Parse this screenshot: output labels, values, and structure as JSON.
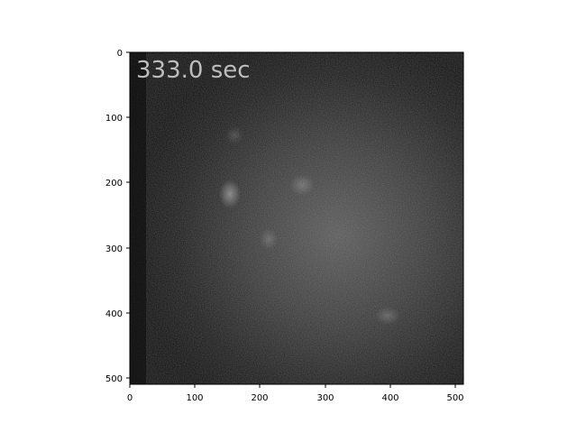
{
  "image": {
    "description_free": true,
    "timestamp_label": "333.0 sec",
    "colormap": "gray",
    "overlay_text_color": "#bdbdbd",
    "x_ticks": [
      "0",
      "100",
      "200",
      "300",
      "400",
      "500"
    ],
    "y_ticks": [
      "0",
      "100",
      "200",
      "300",
      "400",
      "500"
    ],
    "x_range": [
      0,
      512
    ],
    "y_range": [
      0,
      512
    ],
    "y_inverted": true
  }
}
